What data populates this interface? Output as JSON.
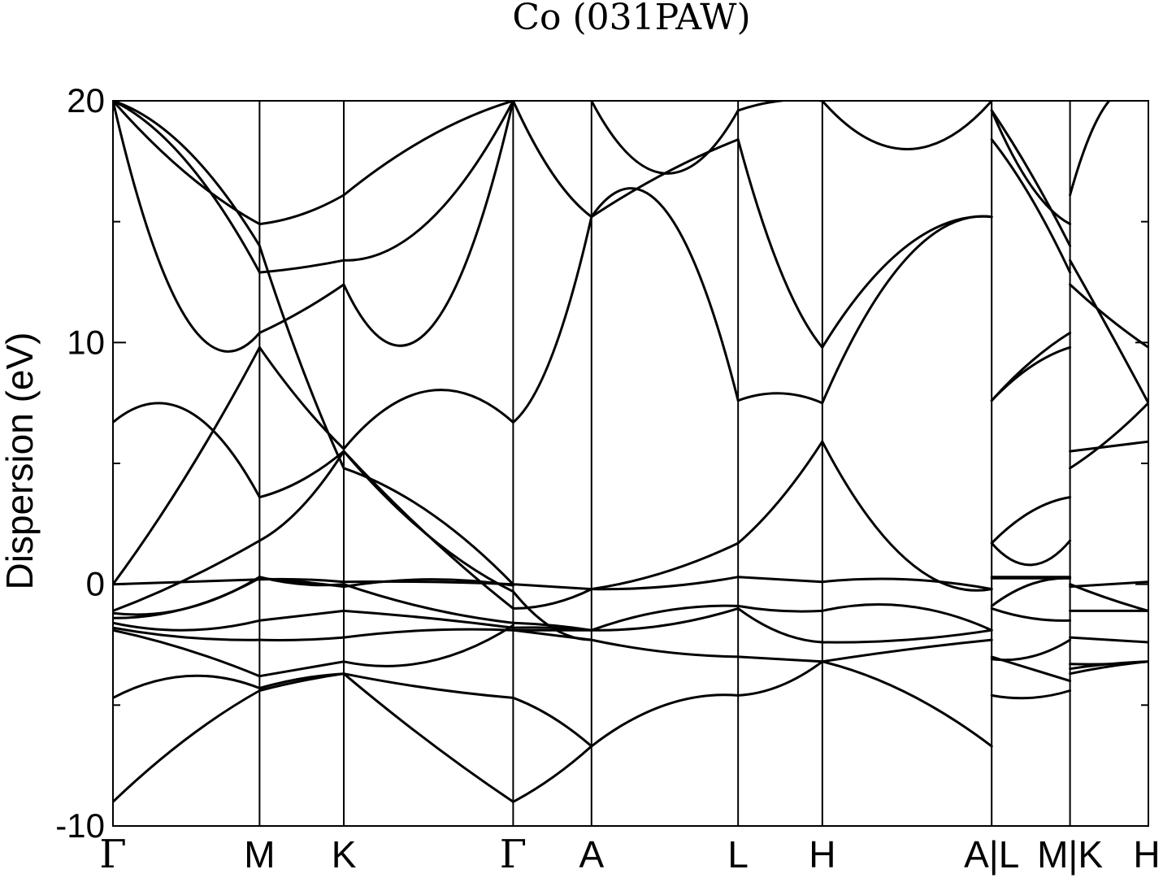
{
  "chart_data": {
    "type": "line",
    "title": "Co (031PAW)",
    "ylabel": "Dispersion (eV)",
    "ylim": [
      -10,
      20
    ],
    "yticks": [
      -10,
      0,
      10,
      20
    ],
    "yminor": [
      -5,
      5,
      15
    ],
    "grid": false,
    "legend": "none",
    "kpath": [
      {
        "label": "Γ",
        "pos": 0.0,
        "greek": true
      },
      {
        "label": "M",
        "pos": 1.74,
        "greek": false
      },
      {
        "label": "K",
        "pos": 2.74,
        "greek": false
      },
      {
        "label": "Γ",
        "pos": 4.75,
        "greek": true
      },
      {
        "label": "A",
        "pos": 5.68,
        "greek": false
      },
      {
        "label": "L",
        "pos": 7.42,
        "greek": false
      },
      {
        "label": "H",
        "pos": 8.42,
        "greek": false
      },
      {
        "label": "A|L",
        "pos": 10.43,
        "greek": false
      },
      {
        "label": "M|K",
        "pos": 11.36,
        "greek": false
      },
      {
        "label": "H",
        "pos": 12.29,
        "greek": false
      }
    ],
    "segments": [
      {
        "from": "Γ",
        "to": "M",
        "x": [
          0.0,
          1.74
        ],
        "bands": [
          [
            -9.0,
            -6.4,
            -4.4
          ],
          [
            -4.7,
            -3.8,
            -4.3
          ],
          [
            -1.9,
            -2.7,
            -3.8
          ],
          [
            -1.8,
            -2.2,
            -2.3
          ],
          [
            -1.6,
            -1.9,
            -1.5
          ],
          [
            -1.4,
            -1.0,
            0.25
          ],
          [
            -1.2,
            -1.0,
            0.3
          ],
          [
            -1.1,
            0.2,
            1.8
          ],
          [
            0.0,
            0.1,
            0.2
          ],
          [
            0.0,
            4.5,
            9.8
          ],
          [
            6.7,
            7.2,
            3.6
          ],
          [
            20.0,
            11.0,
            10.4
          ],
          [
            20.0,
            17.5,
            12.9
          ],
          [
            20.0,
            18.0,
            14.0
          ],
          [
            20.0,
            17.0,
            14.9
          ]
        ]
      },
      {
        "from": "M",
        "to": "K",
        "x": [
          1.74,
          2.74
        ],
        "bands": [
          [
            -4.4,
            -4.0,
            -3.7
          ],
          [
            -4.3,
            -3.9,
            -3.7
          ],
          [
            -3.8,
            -3.5,
            -3.2
          ],
          [
            -2.3,
            -2.3,
            -2.2
          ],
          [
            -1.5,
            -1.3,
            -1.1
          ],
          [
            0.25,
            0.1,
            -0.1
          ],
          [
            0.3,
            0.0,
            0.0
          ],
          [
            1.8,
            3.2,
            5.5
          ],
          [
            0.2,
            0.2,
            0.1
          ],
          [
            9.8,
            7.5,
            5.6
          ],
          [
            3.6,
            4.3,
            5.5
          ],
          [
            10.4,
            11.3,
            12.4
          ],
          [
            12.9,
            13.1,
            13.4
          ],
          [
            14.0,
            9.0,
            4.8
          ],
          [
            14.9,
            15.3,
            16.1
          ]
        ]
      },
      {
        "from": "K",
        "to": "Γ",
        "x": [
          2.74,
          4.75
        ],
        "bands": [
          [
            -3.7,
            -6.5,
            -9.0
          ],
          [
            -3.7,
            -4.3,
            -4.7
          ],
          [
            -3.2,
            -3.2,
            -1.7
          ],
          [
            -2.2,
            -1.9,
            -1.9
          ],
          [
            -1.1,
            -1.4,
            -1.8
          ],
          [
            -0.1,
            0.2,
            -0.05
          ],
          [
            0.0,
            -1.0,
            -1.6
          ],
          [
            5.5,
            2.0,
            -1.0
          ],
          [
            0.1,
            0.1,
            0.0
          ],
          [
            5.6,
            8.0,
            6.7
          ],
          [
            5.5,
            2.0,
            -0.3
          ],
          [
            12.4,
            10.5,
            20.0
          ],
          [
            13.4,
            15.0,
            20.0
          ],
          [
            4.8,
            3.0,
            0.0
          ],
          [
            16.1,
            18.5,
            20.0
          ]
        ]
      },
      {
        "from": "Γ",
        "to": "A",
        "x": [
          4.75,
          5.68
        ],
        "bands": [
          [
            -9.0,
            -8.0,
            -6.7
          ],
          [
            -4.7,
            -5.5,
            -6.7
          ],
          [
            -1.9,
            -2.1,
            -2.3
          ],
          [
            -1.9,
            -1.9,
            -1.9
          ],
          [
            -1.8,
            -1.8,
            -1.9
          ],
          [
            -1.6,
            -1.7,
            -1.9
          ],
          [
            -1.0,
            -0.8,
            -0.2
          ],
          [
            -0.3,
            -1.8,
            -2.3
          ],
          [
            0.0,
            -0.1,
            -0.2
          ],
          [
            6.7,
            9.5,
            15.2
          ],
          [
            20.0,
            17.0,
            15.2
          ]
        ]
      },
      {
        "from": "A",
        "to": "L",
        "x": [
          5.68,
          7.42
        ],
        "bands": [
          [
            -6.7,
            -5.0,
            -4.6
          ],
          [
            -2.3,
            -2.8,
            -3.0
          ],
          [
            -1.9,
            -1.7,
            -1.0
          ],
          [
            -1.9,
            -1.1,
            -0.9
          ],
          [
            -0.2,
            0.5,
            1.7
          ],
          [
            -0.2,
            -0.1,
            0.3
          ],
          [
            15.2,
            15.5,
            7.6
          ],
          [
            15.2,
            17.0,
            18.4
          ],
          [
            20.0,
            17.0,
            19.6
          ]
        ]
      },
      {
        "from": "L",
        "to": "H",
        "x": [
          7.42,
          8.42
        ],
        "bands": [
          [
            -4.6,
            -4.2,
            -3.2
          ],
          [
            -3.0,
            -3.1,
            -3.2
          ],
          [
            -1.0,
            -2.0,
            -2.4
          ],
          [
            -0.9,
            -1.1,
            -1.1
          ],
          [
            1.7,
            3.5,
            5.9
          ],
          [
            0.3,
            0.2,
            0.1
          ],
          [
            7.6,
            7.9,
            7.5
          ],
          [
            18.4,
            13.0,
            9.8
          ],
          [
            19.6,
            20.0,
            20.0
          ]
        ]
      },
      {
        "from": "H",
        "to": "A",
        "x": [
          8.42,
          10.43
        ],
        "bands": [
          [
            -3.2,
            -4.5,
            -6.7
          ],
          [
            -3.2,
            -2.7,
            -2.3
          ],
          [
            -2.4,
            -2.3,
            -1.9
          ],
          [
            -1.1,
            -0.9,
            -1.9
          ],
          [
            5.9,
            1.0,
            -0.2
          ],
          [
            0.1,
            0.2,
            -0.2
          ],
          [
            7.5,
            13.5,
            15.2
          ],
          [
            9.8,
            14.0,
            15.2
          ],
          [
            20.0,
            18.0,
            20.0
          ]
        ]
      },
      {
        "from": "L",
        "to": "M",
        "x": [
          10.43,
          11.36
        ],
        "bands": [
          [
            -4.6,
            -4.7,
            -4.4
          ],
          [
            -3.0,
            -3.5,
            -4.0
          ],
          [
            -3.1,
            -3.0,
            -2.3
          ],
          [
            -1.0,
            -1.4,
            -1.5
          ],
          [
            -0.9,
            0.0,
            0.25
          ],
          [
            0.3,
            0.3,
            0.3
          ],
          [
            0.25,
            0.25,
            0.25
          ],
          [
            1.7,
            0.8,
            1.8
          ],
          [
            1.7,
            3.0,
            3.6
          ],
          [
            7.6,
            9.0,
            9.8
          ],
          [
            7.6,
            9.2,
            10.4
          ],
          [
            18.4,
            16.0,
            12.9
          ],
          [
            19.6,
            17.0,
            14.0
          ],
          [
            19.6,
            16.5,
            14.9
          ]
        ]
      },
      {
        "from": "K",
        "to": "H",
        "x": [
          11.36,
          12.29
        ],
        "bands": [
          [
            -3.7,
            -3.4,
            -3.2
          ],
          [
            -3.5,
            -3.3,
            -3.2
          ],
          [
            -3.3,
            -3.3,
            -3.2
          ],
          [
            -2.2,
            -2.3,
            -2.4
          ],
          [
            -1.1,
            -1.1,
            -1.1
          ],
          [
            -0.1,
            0.0,
            0.1
          ],
          [
            0.0,
            -0.6,
            -1.1
          ],
          [
            5.5,
            5.7,
            5.9
          ],
          [
            4.8,
            6.0,
            7.5
          ],
          [
            12.4,
            11.0,
            9.8
          ],
          [
            13.4,
            10.5,
            7.5
          ],
          [
            16.1,
            20.0,
            20.0
          ]
        ]
      }
    ]
  }
}
